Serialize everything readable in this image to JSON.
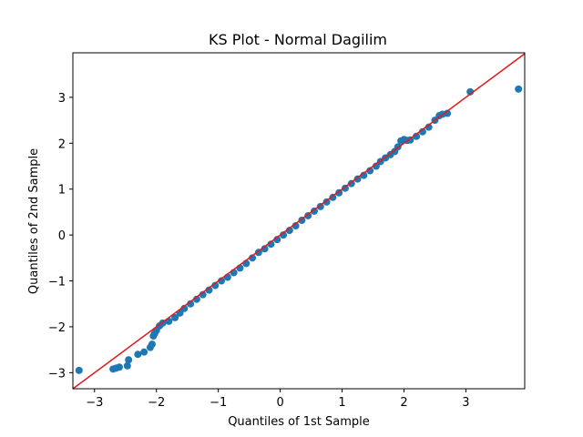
{
  "chart_data": {
    "type": "scatter",
    "title": "KS Plot - Normal Dagilim",
    "xlabel": "Quantiles of 1st Sample",
    "ylabel": "Quantiles of 2nd Sample",
    "xlim": [
      -3.35,
      3.95
    ],
    "ylim": [
      -3.35,
      3.97
    ],
    "xticks": [
      -3,
      -2,
      -1,
      0,
      1,
      2,
      3
    ],
    "yticks": [
      -3,
      -2,
      -1,
      0,
      1,
      2,
      3
    ],
    "grid": false,
    "colors": {
      "points": "#1f77b4",
      "reference_line": "#e31a1c",
      "axes": "#000000"
    },
    "reference_line": {
      "slope": 1,
      "intercept": 0,
      "label": ""
    },
    "series": [
      {
        "points": [
          [
            -3.25,
            -2.95
          ],
          [
            -2.7,
            -2.92
          ],
          [
            -2.65,
            -2.9
          ],
          [
            -2.6,
            -2.88
          ],
          [
            -2.47,
            -2.85
          ],
          [
            -2.45,
            -2.72
          ],
          [
            -2.3,
            -2.6
          ],
          [
            -2.2,
            -2.55
          ],
          [
            -2.1,
            -2.45
          ],
          [
            -2.07,
            -2.38
          ],
          [
            -2.05,
            -2.2
          ],
          [
            -2.03,
            -2.15
          ],
          [
            -2.0,
            -2.08
          ],
          [
            -1.95,
            -1.98
          ],
          [
            -1.9,
            -1.92
          ],
          [
            -1.8,
            -1.88
          ],
          [
            -1.7,
            -1.8
          ],
          [
            -1.62,
            -1.7
          ],
          [
            -1.55,
            -1.6
          ],
          [
            -1.45,
            -1.5
          ],
          [
            -1.35,
            -1.4
          ],
          [
            -1.25,
            -1.3
          ],
          [
            -1.15,
            -1.2
          ],
          [
            -1.05,
            -1.1
          ],
          [
            -0.95,
            -1.0
          ],
          [
            -0.85,
            -0.92
          ],
          [
            -0.75,
            -0.82
          ],
          [
            -0.65,
            -0.72
          ],
          [
            -0.55,
            -0.62
          ],
          [
            -0.45,
            -0.5
          ],
          [
            -0.35,
            -0.38
          ],
          [
            -0.25,
            -0.3
          ],
          [
            -0.15,
            -0.2
          ],
          [
            -0.05,
            -0.1
          ],
          [
            0.05,
            0.0
          ],
          [
            0.15,
            0.1
          ],
          [
            0.25,
            0.2
          ],
          [
            0.35,
            0.32
          ],
          [
            0.45,
            0.42
          ],
          [
            0.55,
            0.52
          ],
          [
            0.65,
            0.62
          ],
          [
            0.75,
            0.72
          ],
          [
            0.85,
            0.82
          ],
          [
            0.95,
            0.92
          ],
          [
            1.05,
            1.02
          ],
          [
            1.15,
            1.12
          ],
          [
            1.25,
            1.22
          ],
          [
            1.35,
            1.3
          ],
          [
            1.45,
            1.4
          ],
          [
            1.55,
            1.5
          ],
          [
            1.62,
            1.6
          ],
          [
            1.7,
            1.68
          ],
          [
            1.78,
            1.75
          ],
          [
            1.85,
            1.82
          ],
          [
            1.9,
            1.92
          ],
          [
            1.95,
            2.05
          ],
          [
            2.0,
            2.08
          ],
          [
            2.05,
            2.06
          ],
          [
            2.1,
            2.07
          ],
          [
            2.2,
            2.15
          ],
          [
            2.3,
            2.25
          ],
          [
            2.4,
            2.35
          ],
          [
            2.5,
            2.5
          ],
          [
            2.57,
            2.6
          ],
          [
            2.62,
            2.63
          ],
          [
            2.7,
            2.65
          ],
          [
            3.07,
            3.12
          ],
          [
            3.85,
            3.18
          ]
        ]
      }
    ]
  }
}
